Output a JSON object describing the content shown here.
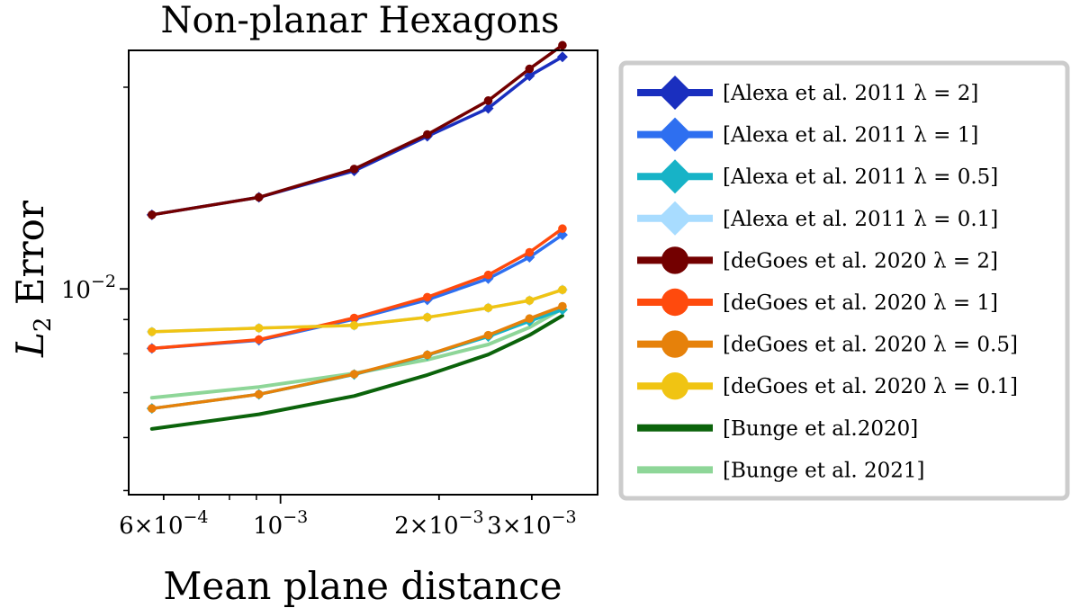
{
  "chart_data": {
    "type": "line",
    "title": "Non-planar Hexagons",
    "xlabel": "Mean plane distance",
    "ylabel": "L2 Error",
    "xscale": "log",
    "yscale": "log",
    "xlim": [
      0.000515,
      0.004
    ],
    "ylim": [
      0.00493,
      0.0227
    ],
    "x_ticks": [
      {
        "value": 0.0006,
        "label": "6 × 10^-4"
      },
      {
        "value": 0.001,
        "label": "10^-3"
      },
      {
        "value": 0.002,
        "label": "2 × 10^-3"
      },
      {
        "value": 0.003,
        "label": "3 × 10^-3"
      }
    ],
    "y_ticks": [
      {
        "value": 0.01,
        "label": "10^-2"
      }
    ],
    "x": [
      0.00057,
      0.00091,
      0.00138,
      0.0019,
      0.00248,
      0.00297,
      0.00343
    ],
    "series": [
      {
        "name": "[Alexa et al. 2011 λ = 2]",
        "color": "#1a2fbf",
        "marker": "diamond",
        "values": [
          0.0129,
          0.0137,
          0.015,
          0.0169,
          0.0186,
          0.0208,
          0.0222
        ]
      },
      {
        "name": "[Alexa et al. 2011 λ = 1]",
        "color": "#2e6ff0",
        "marker": "diamond",
        "values": [
          0.00815,
          0.00838,
          0.00901,
          0.00963,
          0.01036,
          0.01115,
          0.01204
        ]
      },
      {
        "name": "[Alexa et al. 2011 λ = 0.5]",
        "color": "#17b3c7",
        "marker": "diamond",
        "values": [
          0.00663,
          0.00696,
          0.00745,
          0.00796,
          0.00849,
          0.00895,
          0.00931
        ]
      },
      {
        "name": "[Alexa et al. 2011 λ = 0.1]",
        "color": "#a8dcff",
        "marker": "diamond",
        "values": [
          0.00863,
          0.00874,
          0.00882,
          0.00907,
          0.00937,
          0.00961,
          0.00997
        ]
      },
      {
        "name": "[deGoes et al. 2020 λ = 2]",
        "color": "#730000",
        "marker": "circle",
        "values": [
          0.0129,
          0.0137,
          0.0151,
          0.017,
          0.0191,
          0.0213,
          0.0231
        ]
      },
      {
        "name": "[deGoes et al. 2020 λ = 1]",
        "color": "#ff4a0d",
        "marker": "circle",
        "values": [
          0.00815,
          0.0084,
          0.00905,
          0.00972,
          0.01049,
          0.01134,
          0.0123
        ]
      },
      {
        "name": "[deGoes et al. 2020 λ = 0.5]",
        "color": "#e6810a",
        "marker": "circle",
        "values": [
          0.00663,
          0.00696,
          0.00746,
          0.00797,
          0.00853,
          0.00903,
          0.00942
        ]
      },
      {
        "name": "[deGoes et al. 2020 λ = 0.1]",
        "color": "#f0c413",
        "marker": "circle",
        "values": [
          0.00863,
          0.00874,
          0.00882,
          0.00907,
          0.00937,
          0.00961,
          0.00997
        ]
      },
      {
        "name": "[Bunge et al.2020]",
        "color": "#0b630b",
        "marker": "none",
        "values": [
          0.00618,
          0.0065,
          0.00692,
          0.00744,
          0.00798,
          0.00853,
          0.00912
        ]
      },
      {
        "name": "[Bunge et al. 2021]",
        "color": "#8ed698",
        "marker": "none",
        "values": [
          0.00688,
          0.00714,
          0.00748,
          0.00784,
          0.00826,
          0.00876,
          0.00934
        ]
      }
    ],
    "legend_position": "right",
    "grid": false
  }
}
